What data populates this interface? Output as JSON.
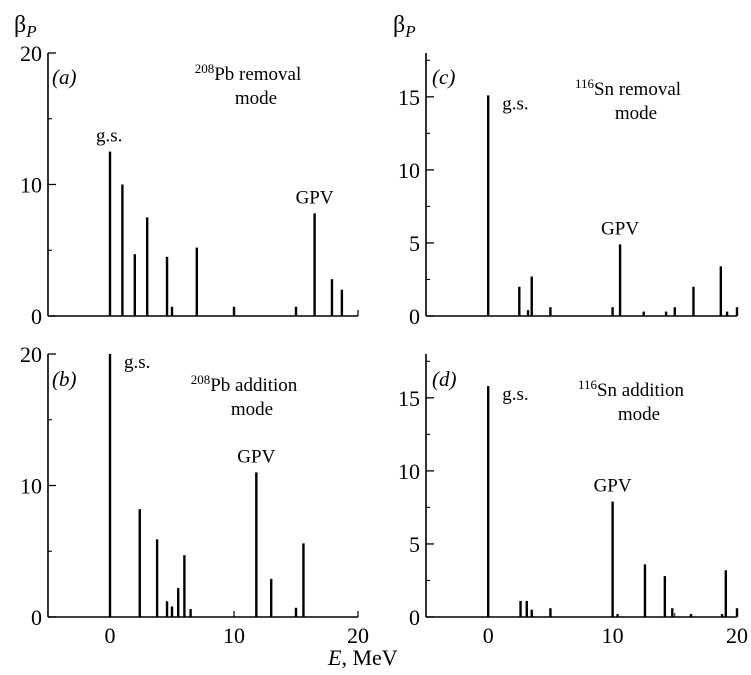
{
  "figure": {
    "ylabel_base": "β",
    "ylabel_sub": "P",
    "xlabel_italic": "E",
    "xlabel_rest": ", MeV"
  },
  "chart_data": [
    {
      "type": "bar",
      "panel": "(a)",
      "nucleus_mass": "208",
      "nucleus_rest": "Pb removal",
      "mode_line": "mode",
      "xlim": [
        -5,
        20
      ],
      "ylim": [
        0,
        20
      ],
      "xticks": [
        "0",
        "10",
        "20"
      ],
      "yticks": [
        "0",
        "10",
        "20"
      ],
      "labels": [
        {
          "text": "g.s.",
          "x": 0,
          "y": 12.5
        },
        {
          "text": "GPV",
          "x": 16.5,
          "y": 7.8
        }
      ],
      "spikes": [
        {
          "x": 0,
          "y": 12.5
        },
        {
          "x": 1,
          "y": 10
        },
        {
          "x": 2,
          "y": 4.7
        },
        {
          "x": 3,
          "y": 7.5
        },
        {
          "x": 4.6,
          "y": 4.5
        },
        {
          "x": 5,
          "y": 0.7
        },
        {
          "x": 7,
          "y": 5.2
        },
        {
          "x": 10,
          "y": 0.7
        },
        {
          "x": 15,
          "y": 0.7
        },
        {
          "x": 16.5,
          "y": 7.8
        },
        {
          "x": 17.9,
          "y": 2.8
        },
        {
          "x": 18.7,
          "y": 2
        }
      ]
    },
    {
      "type": "bar",
      "panel": "(c)",
      "nucleus_mass": "116",
      "nucleus_rest": "Sn removal",
      "mode_line": "mode",
      "xlim": [
        -5,
        20
      ],
      "ylim": [
        0,
        18
      ],
      "xticks": [
        "0",
        "10",
        "20"
      ],
      "yticks": [
        "0",
        "5",
        "10",
        "15"
      ],
      "labels": [
        {
          "text": "g.s.",
          "x": 0,
          "y": 15.1
        },
        {
          "text": "GPV",
          "x": 10.6,
          "y": 4.9
        }
      ],
      "spikes": [
        {
          "x": 0,
          "y": 15.1
        },
        {
          "x": 2.5,
          "y": 2
        },
        {
          "x": 3.2,
          "y": 0.4
        },
        {
          "x": 3.5,
          "y": 2.7
        },
        {
          "x": 5,
          "y": 0.6
        },
        {
          "x": 10,
          "y": 0.6
        },
        {
          "x": 10.6,
          "y": 4.9
        },
        {
          "x": 12.5,
          "y": 0.3
        },
        {
          "x": 14.3,
          "y": 0.3
        },
        {
          "x": 15,
          "y": 0.6
        },
        {
          "x": 16.5,
          "y": 2
        },
        {
          "x": 18.7,
          "y": 3.4
        },
        {
          "x": 19.2,
          "y": 0.3
        },
        {
          "x": 20,
          "y": 0.6
        }
      ]
    },
    {
      "type": "bar",
      "panel": "(b)",
      "nucleus_mass": "208",
      "nucleus_rest": "Pb addition",
      "mode_line": "mode",
      "xlim": [
        -5,
        20
      ],
      "ylim": [
        0,
        20
      ],
      "xticks": [
        "0",
        "10",
        "20"
      ],
      "yticks": [
        "0",
        "10",
        "20"
      ],
      "labels": [
        {
          "text": "g.s.",
          "x": 0,
          "y": 20
        },
        {
          "text": "GPV",
          "x": 11.8,
          "y": 11
        }
      ],
      "spikes": [
        {
          "x": 0,
          "y": 20
        },
        {
          "x": 2.4,
          "y": 8.2
        },
        {
          "x": 3.8,
          "y": 5.9
        },
        {
          "x": 4.6,
          "y": 1.2
        },
        {
          "x": 5,
          "y": 0.8
        },
        {
          "x": 5.5,
          "y": 2.2
        },
        {
          "x": 6,
          "y": 4.7
        },
        {
          "x": 6.5,
          "y": 0.6
        },
        {
          "x": 11.8,
          "y": 11
        },
        {
          "x": 13,
          "y": 2.9
        },
        {
          "x": 15,
          "y": 0.7
        },
        {
          "x": 15.6,
          "y": 5.6
        }
      ]
    },
    {
      "type": "bar",
      "panel": "(d)",
      "nucleus_mass": "116",
      "nucleus_rest": "Sn addition",
      "mode_line": "mode",
      "xlim": [
        -5,
        20
      ],
      "ylim": [
        0,
        18
      ],
      "xticks": [
        "0",
        "10",
        "20"
      ],
      "yticks": [
        "0",
        "5",
        "10",
        "15"
      ],
      "labels": [
        {
          "text": "g.s.",
          "x": 0,
          "y": 15.8
        },
        {
          "text": "GPV",
          "x": 10,
          "y": 7.9
        }
      ],
      "spikes": [
        {
          "x": 0,
          "y": 15.8
        },
        {
          "x": 2.6,
          "y": 1.1
        },
        {
          "x": 3.1,
          "y": 1.1
        },
        {
          "x": 3.5,
          "y": 0.5
        },
        {
          "x": 5,
          "y": 0.6
        },
        {
          "x": 10,
          "y": 7.9
        },
        {
          "x": 10.4,
          "y": 0.2
        },
        {
          "x": 12.6,
          "y": 3.6
        },
        {
          "x": 14.2,
          "y": 2.8
        },
        {
          "x": 14.8,
          "y": 0.6
        },
        {
          "x": 16.3,
          "y": 0.2
        },
        {
          "x": 18.8,
          "y": 0.2
        },
        {
          "x": 19.1,
          "y": 3.2
        },
        {
          "x": 20,
          "y": 0.6
        }
      ]
    }
  ]
}
